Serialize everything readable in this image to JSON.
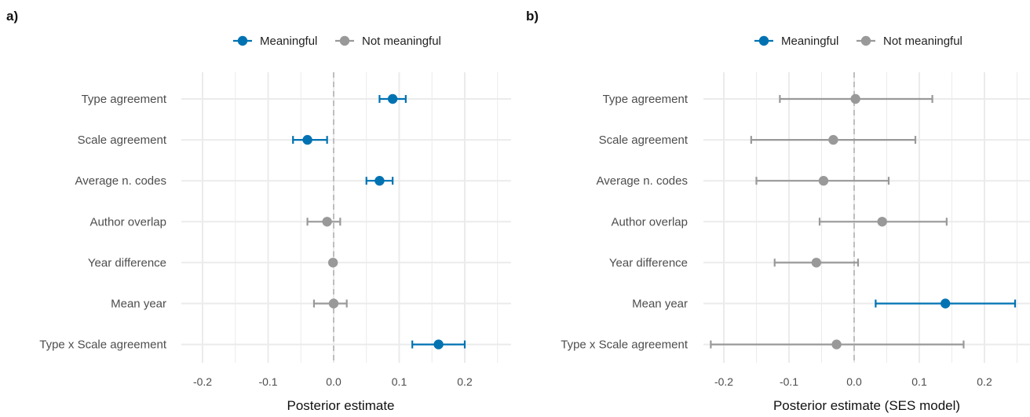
{
  "colors": {
    "meaningful": "#0072B2",
    "not_meaningful": "#999999",
    "grid": "#ebebeb",
    "zero_line": "#b3b3b3"
  },
  "legend": {
    "meaningful": "Meaningful",
    "not_meaningful": "Not meaningful"
  },
  "chart_data": [
    {
      "type": "scatter",
      "panel_label": "a)",
      "title": "",
      "xlabel": "Posterior estimate",
      "ylabel": "",
      "xlim": [
        -0.27,
        0.27
      ],
      "x_ticks": [
        -0.2,
        -0.1,
        0.0,
        0.1,
        0.2
      ],
      "x_tick_labels": [
        "-0.2",
        "-0.1",
        "0.0",
        "0.1",
        "0.2"
      ],
      "grid": true,
      "legend_position": "top",
      "reference_line": 0,
      "categories": [
        "Type agreement",
        "Scale agreement",
        "Average n. codes",
        "Author overlap",
        "Year difference",
        "Mean year",
        "Type x Scale agreement"
      ],
      "series": [
        {
          "name": "Meaningful",
          "points": [
            {
              "category": "Type agreement",
              "estimate": 0.09,
              "lower": 0.07,
              "upper": 0.11
            },
            {
              "category": "Scale agreement",
              "estimate": -0.04,
              "lower": -0.062,
              "upper": -0.01
            },
            {
              "category": "Average n. codes",
              "estimate": 0.07,
              "lower": 0.05,
              "upper": 0.09
            },
            {
              "category": "Type x Scale agreement",
              "estimate": 0.16,
              "lower": 0.12,
              "upper": 0.2
            }
          ]
        },
        {
          "name": "Not meaningful",
          "points": [
            {
              "category": "Author overlap",
              "estimate": -0.01,
              "lower": -0.04,
              "upper": 0.01
            },
            {
              "category": "Year difference",
              "estimate": -0.001,
              "lower": -0.001,
              "upper": -0.001
            },
            {
              "category": "Mean year",
              "estimate": 0.0,
              "lower": -0.03,
              "upper": 0.02
            }
          ]
        }
      ]
    },
    {
      "type": "scatter",
      "panel_label": "b)",
      "title": "",
      "xlabel": "Posterior estimate (SES model)",
      "ylabel": "",
      "xlim": [
        -0.27,
        0.27
      ],
      "x_ticks": [
        -0.2,
        -0.1,
        0.0,
        0.1,
        0.2
      ],
      "x_tick_labels": [
        "-0.2",
        "-0.1",
        "0.0",
        "0.1",
        "0.2"
      ],
      "grid": true,
      "legend_position": "top",
      "reference_line": 0,
      "categories": [
        "Type agreement",
        "Scale agreement",
        "Average n. codes",
        "Author overlap",
        "Year difference",
        "Mean year",
        "Type x Scale agreement"
      ],
      "series": [
        {
          "name": "Meaningful",
          "points": [
            {
              "category": "Mean year",
              "estimate": 0.14,
              "lower": 0.033,
              "upper": 0.247
            }
          ]
        },
        {
          "name": "Not meaningful",
          "points": [
            {
              "category": "Type agreement",
              "estimate": 0.002,
              "lower": -0.114,
              "upper": 0.12
            },
            {
              "category": "Scale agreement",
              "estimate": -0.032,
              "lower": -0.158,
              "upper": 0.094
            },
            {
              "category": "Average n. codes",
              "estimate": -0.047,
              "lower": -0.15,
              "upper": 0.053
            },
            {
              "category": "Author overlap",
              "estimate": 0.043,
              "lower": -0.053,
              "upper": 0.142
            },
            {
              "category": "Year difference",
              "estimate": -0.058,
              "lower": -0.122,
              "upper": 0.006
            },
            {
              "category": "Type x Scale agreement",
              "estimate": -0.027,
              "lower": -0.22,
              "upper": 0.168
            }
          ]
        }
      ]
    }
  ]
}
